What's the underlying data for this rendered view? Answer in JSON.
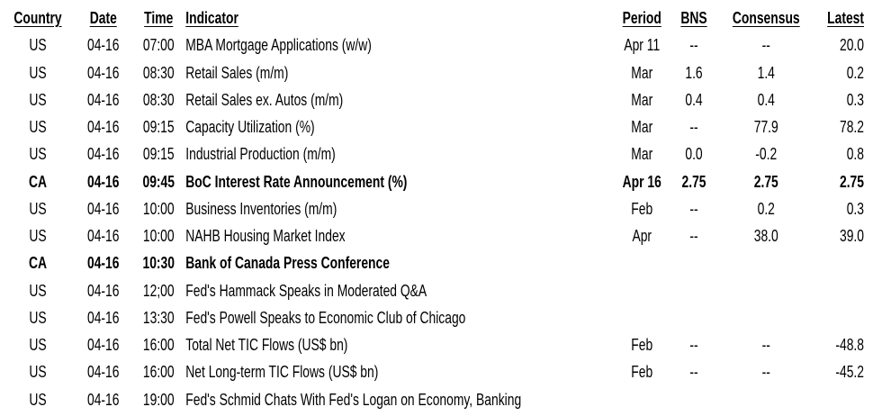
{
  "table": {
    "headers": {
      "country": "Country",
      "date": "Date",
      "time": "Time",
      "indicator": "Indicator",
      "period": "Period",
      "bns": "BNS",
      "consensus": "Consensus",
      "latest": "Latest"
    },
    "rows": [
      {
        "country": "US",
        "date": "04-16",
        "time": "07:00",
        "indicator": "MBA Mortgage Applications (w/w)",
        "period": "Apr 11",
        "bns": "--",
        "consensus": "--",
        "latest": "20.0",
        "bold": false
      },
      {
        "country": "US",
        "date": "04-16",
        "time": "08:30",
        "indicator": "Retail Sales (m/m)",
        "period": "Mar",
        "bns": "1.6",
        "consensus": "1.4",
        "latest": "0.2",
        "bold": false
      },
      {
        "country": "US",
        "date": "04-16",
        "time": "08:30",
        "indicator": "Retail Sales ex. Autos (m/m)",
        "period": "Mar",
        "bns": "0.4",
        "consensus": "0.4",
        "latest": "0.3",
        "bold": false
      },
      {
        "country": "US",
        "date": "04-16",
        "time": "09:15",
        "indicator": "Capacity Utilization (%)",
        "period": "Mar",
        "bns": "--",
        "consensus": "77.9",
        "latest": "78.2",
        "bold": false
      },
      {
        "country": "US",
        "date": "04-16",
        "time": "09:15",
        "indicator": "Industrial Production (m/m)",
        "period": "Mar",
        "bns": "0.0",
        "consensus": "-0.2",
        "latest": "0.8",
        "bold": false
      },
      {
        "country": "CA",
        "date": "04-16",
        "time": "09:45",
        "indicator": "BoC Interest Rate Announcement (%)",
        "period": "Apr 16",
        "bns": "2.75",
        "consensus": "2.75",
        "latest": "2.75",
        "bold": true
      },
      {
        "country": "US",
        "date": "04-16",
        "time": "10:00",
        "indicator": "Business Inventories (m/m)",
        "period": "Feb",
        "bns": "--",
        "consensus": "0.2",
        "latest": "0.3",
        "bold": false
      },
      {
        "country": "US",
        "date": "04-16",
        "time": "10:00",
        "indicator": "NAHB Housing Market Index",
        "period": "Apr",
        "bns": "--",
        "consensus": "38.0",
        "latest": "39.0",
        "bold": false
      },
      {
        "country": "CA",
        "date": "04-16",
        "time": "10:30",
        "indicator": "Bank of Canada Press Conference",
        "period": "",
        "bns": "",
        "consensus": "",
        "latest": "",
        "bold": true
      },
      {
        "country": "US",
        "date": "04-16",
        "time": "12;00",
        "indicator": "Fed's Hammack Speaks in Moderated Q&A",
        "period": "",
        "bns": "",
        "consensus": "",
        "latest": "",
        "bold": false
      },
      {
        "country": "US",
        "date": "04-16",
        "time": "13:30",
        "indicator": "Fed's Powell Speaks to Economic Club of Chicago",
        "period": "",
        "bns": "",
        "consensus": "",
        "latest": "",
        "bold": false
      },
      {
        "country": "US",
        "date": "04-16",
        "time": "16:00",
        "indicator": "Total Net TIC Flows (US$ bn)",
        "period": "Feb",
        "bns": "--",
        "consensus": "--",
        "latest": "-48.8",
        "bold": false
      },
      {
        "country": "US",
        "date": "04-16",
        "time": "16:00",
        "indicator": "Net Long-term TIC Flows (US$ bn)",
        "period": "Feb",
        "bns": "--",
        "consensus": "--",
        "latest": "-45.2",
        "bold": false
      },
      {
        "country": "US",
        "date": "04-16",
        "time": "19:00",
        "indicator": "Fed's Schmid Chats With Fed's Logan on Economy, Banking",
        "period": "",
        "bns": "",
        "consensus": "",
        "latest": "",
        "bold": false
      }
    ]
  }
}
